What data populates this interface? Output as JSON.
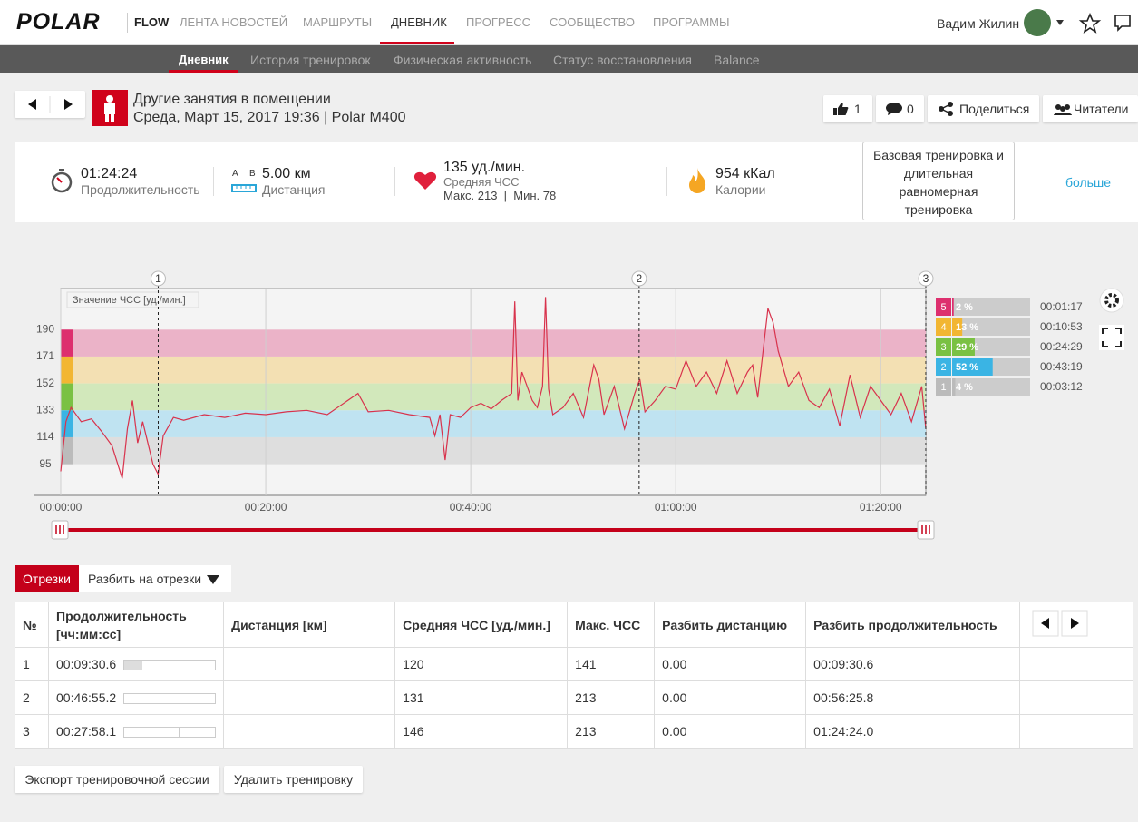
{
  "header": {
    "logo": "POLAR",
    "brand": "FLOW",
    "nav": [
      "ЛЕНТА НОВОСТЕЙ",
      "МАРШРУТЫ",
      "ДНЕВНИК",
      "ПРОГРЕСС",
      "СООБЩЕСТВО",
      "ПРОГРАММЫ"
    ],
    "user": "Вадим Жилин"
  },
  "subnav": [
    "Дневник",
    "История тренировок",
    "Физическая активность",
    "Статус восстановления",
    "Balance"
  ],
  "session": {
    "sport": "Другие занятия в помещении",
    "date": "Среда, Март 15, 2017 19:36 | Polar M400",
    "likes": "1",
    "comments": "0",
    "share": "Поделиться",
    "readers": "Читатели"
  },
  "summary": {
    "duration": "01:24:24",
    "duration_label": "Продолжительность",
    "distance_ab": [
      "A",
      "B"
    ],
    "distance": "5.00 км",
    "distance_label": "Дистанция",
    "hr": "135 уд./мин.",
    "hr_label": "Средняя ЧСС",
    "hr_range": "Макс. 213  |  Мин. 78",
    "calories": "954 кКал",
    "calories_label": "Калории",
    "benefit": "Базовая тренировка и длительная равномерная тренировка",
    "more": "больше"
  },
  "chart_data": {
    "type": "line",
    "y_label": "Значение ЧСС [уд./мин.]",
    "color": "#d8324c",
    "x": [
      0,
      0.5,
      1,
      2,
      3,
      4,
      5,
      6,
      6.5,
      7,
      7.5,
      8,
      9,
      9.5,
      10,
      11,
      12,
      14,
      16,
      18,
      20,
      22,
      24,
      26,
      29,
      30,
      32,
      34,
      36,
      36.5,
      37,
      37.5,
      38,
      39,
      40,
      41,
      42,
      43,
      44,
      44.3,
      44.6,
      45,
      46,
      46.5,
      47,
      47.3,
      47.6,
      48,
      49,
      50,
      51,
      52,
      52.5,
      53,
      54,
      55,
      56,
      56.5,
      57,
      58,
      59,
      60,
      61,
      62,
      63,
      64,
      65,
      66,
      67,
      67.5,
      68,
      69,
      69.5,
      70,
      71,
      72,
      73,
      74,
      75,
      76,
      77,
      78,
      79,
      80,
      81,
      82,
      83,
      84,
      84.4
    ],
    "values": [
      90,
      125,
      135,
      125,
      127,
      118,
      108,
      85,
      120,
      140,
      110,
      125,
      95,
      88,
      115,
      128,
      126,
      130,
      128,
      131,
      130,
      132,
      133,
      130,
      145,
      132,
      133,
      130,
      128,
      115,
      130,
      98,
      130,
      128,
      135,
      138,
      134,
      140,
      145,
      210,
      140,
      160,
      140,
      135,
      150,
      213,
      148,
      130,
      135,
      145,
      128,
      165,
      155,
      130,
      150,
      120,
      145,
      155,
      132,
      140,
      150,
      148,
      168,
      150,
      160,
      145,
      168,
      145,
      160,
      165,
      142,
      205,
      195,
      175,
      150,
      160,
      140,
      135,
      148,
      122,
      158,
      128,
      150,
      140,
      130,
      145,
      125,
      150,
      120
    ],
    "xlim": [
      0,
      84.4
    ],
    "ylim": [
      73,
      219
    ],
    "xticks": [
      {
        "value": 0,
        "label": "00:00:00"
      },
      {
        "value": 20,
        "label": "00:20:00"
      },
      {
        "value": 40,
        "label": "00:40:00"
      },
      {
        "value": 60,
        "label": "01:00:00"
      },
      {
        "value": 80,
        "label": "01:20:00"
      }
    ],
    "yticks": [
      95,
      114,
      133,
      152,
      171,
      190
    ],
    "grid": true,
    "laps": [
      {
        "label": "1",
        "x": 9.51
      },
      {
        "label": "2",
        "x": 56.43
      },
      {
        "label": "3",
        "x": 84.4
      }
    ],
    "zones": [
      {
        "label": "5",
        "range": [
          171,
          190
        ],
        "color": "#dd2f6e",
        "band_color": "#ebb3c8",
        "percent": 2,
        "percent_label": "2 %",
        "time": "00:01:17"
      },
      {
        "label": "4",
        "range": [
          152,
          171
        ],
        "color": "#f2b632",
        "band_color": "#f3e0b3",
        "percent": 13,
        "percent_label": "13 %",
        "time": "00:10:53"
      },
      {
        "label": "3",
        "range": [
          133,
          152
        ],
        "color": "#7ac143",
        "band_color": "#d2e8bb",
        "percent": 29,
        "percent_label": "29 %",
        "time": "00:24:29"
      },
      {
        "label": "2",
        "range": [
          114,
          133
        ],
        "color": "#3ab4e4",
        "band_color": "#bfe3f1",
        "percent": 52,
        "percent_label": "52 %",
        "time": "00:43:19"
      },
      {
        "label": "1",
        "range": [
          95,
          114
        ],
        "color": "#bbbbbb",
        "band_color": "#dedede",
        "percent": 4,
        "percent_label": "4 %",
        "time": "00:03:12"
      }
    ]
  },
  "laps": {
    "tab": "Отрезки",
    "split": "Разбить на отрезки",
    "columns": [
      "№",
      "Продолжительность [чч:мм:сс]",
      "Дистанция [км]",
      "Средняя ЧСС [уд./мин.]",
      "Макс. ЧСС",
      "Разбить дистанцию",
      "Разбить продолжительность"
    ],
    "rows": [
      {
        "n": "1",
        "duration": "00:09:30.6",
        "avg_hr": "120",
        "max_hr": "141",
        "split_distance": "0.00",
        "split_duration": "00:09:30.6"
      },
      {
        "n": "2",
        "duration": "00:46:55.2",
        "avg_hr": "131",
        "max_hr": "213",
        "split_distance": "0.00",
        "split_duration": "00:56:25.8"
      },
      {
        "n": "3",
        "duration": "00:27:58.1",
        "avg_hr": "146",
        "max_hr": "213",
        "split_distance": "0.00",
        "split_duration": "01:24:24.0"
      }
    ]
  },
  "footer": {
    "export": "Экспорт тренировочной сессии",
    "delete": "Удалить тренировку"
  }
}
